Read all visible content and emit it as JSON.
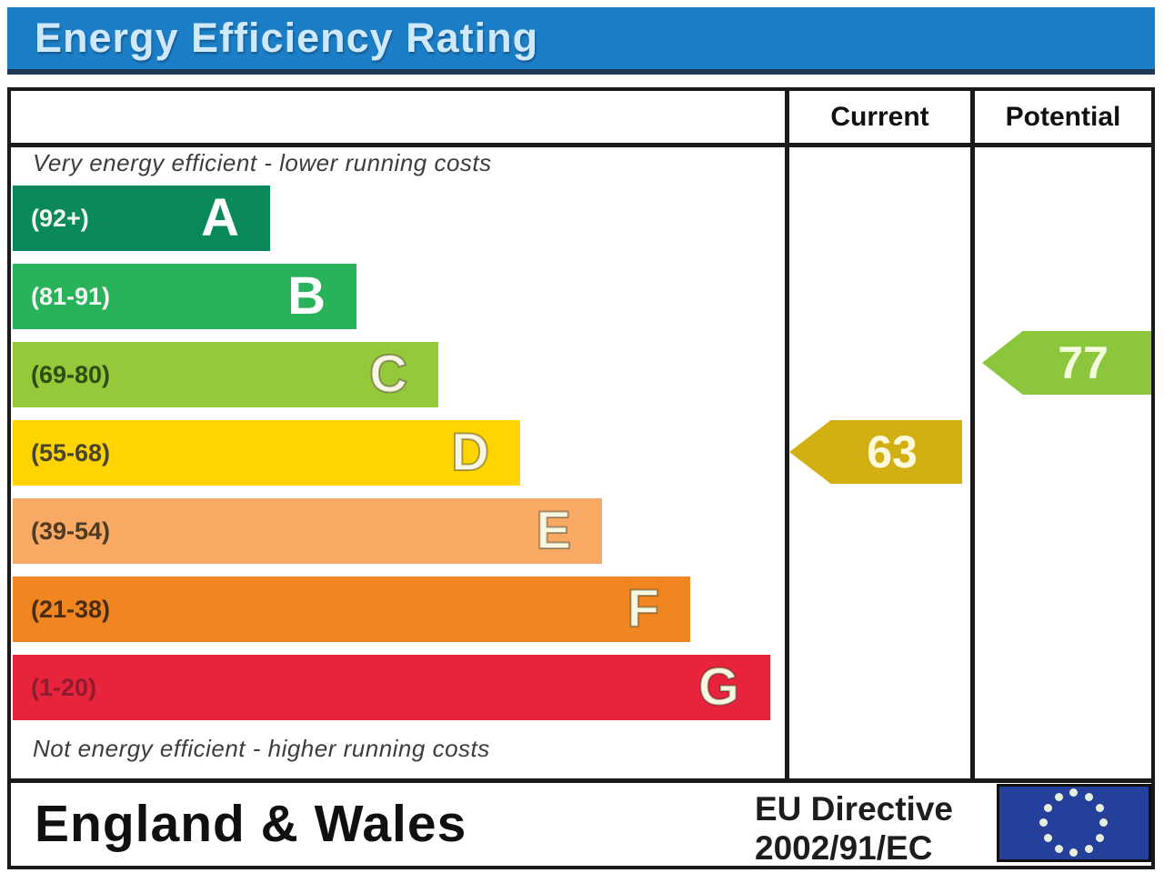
{
  "chart_data": {
    "type": "bar",
    "title": "Energy Efficiency Rating",
    "columns": {
      "current": "Current",
      "potential": "Potential"
    },
    "top_caption": "Very energy efficient - lower running costs",
    "bottom_caption": "Not energy efficient - higher running costs",
    "bands": [
      {
        "letter": "A",
        "range": "(92+)",
        "color": "#0a8a5a",
        "relative_width": 0.33
      },
      {
        "letter": "B",
        "range": "(81-91)",
        "color": "#28b25a",
        "relative_width": 0.44
      },
      {
        "letter": "C",
        "range": "(69-80)",
        "color": "#96c83c",
        "relative_width": 0.55
      },
      {
        "letter": "D",
        "range": "(55-68)",
        "color": "#ffd400",
        "relative_width": 0.65
      },
      {
        "letter": "E",
        "range": "(39-54)",
        "color": "#f8aa64",
        "relative_width": 0.76
      },
      {
        "letter": "F",
        "range": "(21-38)",
        "color": "#f08620",
        "relative_width": 0.87
      },
      {
        "letter": "G",
        "range": "(1-20)",
        "color": "#e8233c",
        "relative_width": 0.98
      }
    ],
    "current": {
      "value": "63",
      "band": "D",
      "arrow_color": "#d2b014"
    },
    "potential": {
      "value": "77",
      "band": "C",
      "arrow_color": "#8cc63c"
    },
    "header_color": "#1b7ec6"
  },
  "footer": {
    "region": "England & Wales",
    "directive_line1": "EU Directive",
    "directive_line2": "2002/91/EC",
    "flag_color": "#24409a",
    "star_color": "#e8eedd"
  }
}
